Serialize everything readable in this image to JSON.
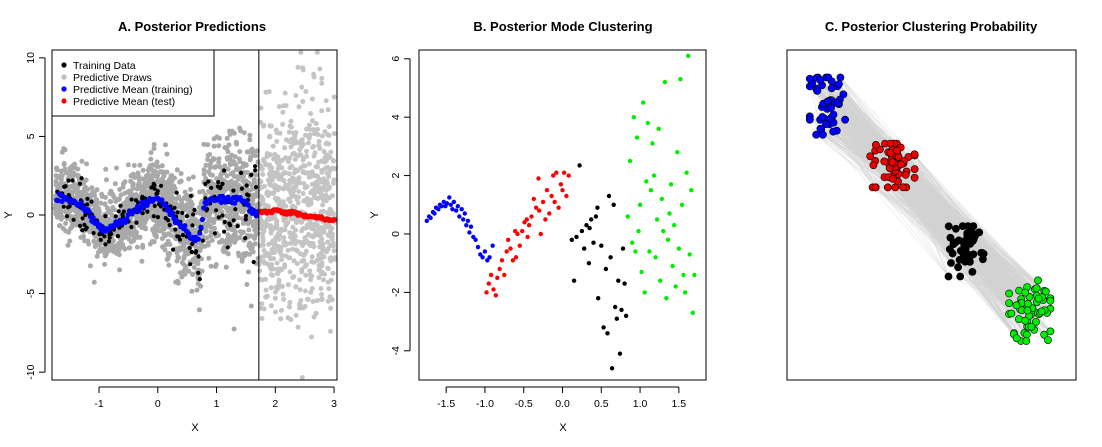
{
  "chart_data": [
    {
      "type": "scatter",
      "title": "A. Posterior Predictions",
      "xlabel": "X",
      "ylabel": "Y",
      "xlim": [
        -1.8,
        3.05
      ],
      "ylim": [
        -10.5,
        10.5
      ],
      "xticks": [
        "-1",
        "0",
        "1",
        "2",
        "3"
      ],
      "xtick_values": [
        -1,
        0,
        1,
        2,
        3
      ],
      "yticks": [
        "-10",
        "-5",
        "0",
        "5",
        "10"
      ],
      "ytick_values": [
        -10,
        -5,
        0,
        5,
        10
      ],
      "vline_x": 1.72,
      "legend_position": "top-left",
      "colors": {
        "training": "#000000",
        "draws": "#c4c4c4",
        "draws_dark": "#a9a9a9",
        "mean_train": "#0000ff",
        "mean_test": "#ff0000"
      },
      "legend": [
        {
          "label": "Training Data",
          "color": "#000000"
        },
        {
          "label": "Predictive Draws",
          "color": "#bebebe"
        },
        {
          "label": "Predictive Mean (training)",
          "color": "#0000ff"
        },
        {
          "label": "Predictive Mean (test)",
          "color": "#ff0000"
        }
      ],
      "series": [
        {
          "name": "Predictive Mean (training)",
          "x": [
            -1.7,
            -1.6,
            -1.5,
            -1.4,
            -1.3,
            -1.2,
            -1.1,
            -1.0,
            -0.9,
            -0.8,
            -0.7,
            -0.6,
            -0.5,
            -0.4,
            -0.3,
            -0.2,
            -0.1,
            0.0,
            0.1,
            0.2,
            0.3,
            0.4,
            0.5,
            0.6,
            0.7,
            0.8,
            0.9,
            1.0,
            1.1,
            1.2,
            1.3,
            1.4,
            1.5,
            1.6,
            1.7
          ],
          "y": [
            1.1,
            1.05,
            0.95,
            0.8,
            0.55,
            0.2,
            -0.3,
            -0.8,
            -1.0,
            -0.9,
            -0.6,
            -0.3,
            0.0,
            0.25,
            0.5,
            0.8,
            1.05,
            1.1,
            0.7,
            0.2,
            -0.3,
            -0.7,
            -1.1,
            -1.5,
            -1.7,
            0.8,
            1.1,
            1.1,
            1.0,
            0.95,
            0.9,
            1.0,
            0.8,
            0.3,
            0.2
          ]
        },
        {
          "name": "Predictive Mean (test)",
          "x": [
            1.75,
            1.9,
            2.05,
            2.2,
            2.35,
            2.5,
            2.65,
            2.8,
            2.95,
            3.0
          ],
          "y": [
            0.2,
            0.25,
            0.3,
            0.2,
            0.1,
            0.0,
            -0.1,
            -0.2,
            -0.3,
            -0.35
          ]
        }
      ]
    },
    {
      "type": "scatter",
      "title": "B. Posterior Mode Clustering",
      "xlabel": "X",
      "ylabel": "Y",
      "xlim": [
        -1.85,
        1.85
      ],
      "ylim": [
        -5.0,
        6.3
      ],
      "xticks": [
        "-1.5",
        "-1.0",
        "-0.5",
        "0.0",
        "0.5",
        "1.0",
        "1.5"
      ],
      "xtick_values": [
        -1.5,
        -1.0,
        -0.5,
        0.0,
        0.5,
        1.0,
        1.5
      ],
      "yticks": [
        "-4",
        "-2",
        "0",
        "2",
        "4",
        "6"
      ],
      "ytick_values": [
        -4,
        -2,
        0,
        2,
        4,
        6
      ],
      "series": [
        {
          "color": "#0000ff",
          "points": [
            [
              -1.75,
              0.45
            ],
            [
              -1.72,
              0.6
            ],
            [
              -1.7,
              0.55
            ],
            [
              -1.67,
              0.75
            ],
            [
              -1.65,
              0.7
            ],
            [
              -1.63,
              0.9
            ],
            [
              -1.6,
              0.85
            ],
            [
              -1.58,
              1.0
            ],
            [
              -1.56,
              0.95
            ],
            [
              -1.53,
              1.1
            ],
            [
              -1.51,
              0.95
            ],
            [
              -1.49,
              1.05
            ],
            [
              -1.46,
              1.25
            ],
            [
              -1.44,
              1.0
            ],
            [
              -1.42,
              0.85
            ],
            [
              -1.4,
              1.1
            ],
            [
              -1.37,
              0.8
            ],
            [
              -1.35,
              0.95
            ],
            [
              -1.33,
              0.6
            ],
            [
              -1.3,
              0.85
            ],
            [
              -1.28,
              0.5
            ],
            [
              -1.26,
              0.7
            ],
            [
              -1.24,
              0.3
            ],
            [
              -1.22,
              0.45
            ],
            [
              -1.2,
              0.05
            ],
            [
              -1.18,
              0.25
            ],
            [
              -1.15,
              -0.1
            ],
            [
              -1.12,
              -0.2
            ],
            [
              -1.09,
              -0.45
            ],
            [
              -1.06,
              -0.7
            ],
            [
              -1.03,
              -0.8
            ],
            [
              -1.0,
              -0.6
            ],
            [
              -0.97,
              -0.9
            ],
            [
              -0.94,
              -0.8
            ],
            [
              -0.9,
              -0.4
            ]
          ]
        },
        {
          "color": "#ff0000",
          "points": [
            [
              -0.98,
              -2.0
            ],
            [
              -0.95,
              -1.7
            ],
            [
              -0.92,
              -1.4
            ],
            [
              -0.89,
              -1.9
            ],
            [
              -0.86,
              -2.1
            ],
            [
              -0.84,
              -1.5
            ],
            [
              -0.81,
              -1.2
            ],
            [
              -0.78,
              -0.9
            ],
            [
              -0.75,
              -1.4
            ],
            [
              -0.72,
              -0.6
            ],
            [
              -0.7,
              -0.2
            ],
            [
              -0.67,
              -0.5
            ],
            [
              -0.64,
              -0.9
            ],
            [
              -0.61,
              0.1
            ],
            [
              -0.58,
              0.0
            ],
            [
              -0.55,
              -0.4
            ],
            [
              -0.52,
              0.1
            ],
            [
              -0.49,
              0.4
            ],
            [
              -0.46,
              0.5
            ],
            [
              -0.43,
              0.3
            ],
            [
              -0.4,
              0.6
            ],
            [
              -0.37,
              1.2
            ],
            [
              -0.34,
              0.9
            ],
            [
              -0.31,
              1.9
            ],
            [
              -0.28,
              0.0
            ],
            [
              -0.25,
              1.1
            ],
            [
              -0.22,
              0.5
            ],
            [
              -0.2,
              1.5
            ],
            [
              -0.17,
              0.7
            ],
            [
              -0.14,
              1.3
            ],
            [
              -0.12,
              2.0
            ],
            [
              -0.1,
              1.1
            ],
            [
              -0.08,
              2.1
            ],
            [
              -0.05,
              0.9
            ],
            [
              -0.02,
              1.7
            ],
            [
              0.0,
              1.5
            ],
            [
              0.02,
              2.1
            ],
            [
              0.05,
              1.3
            ],
            [
              0.08,
              2.0
            ],
            [
              -0.3,
              0.8
            ],
            [
              -0.45,
              -0.1
            ],
            [
              -0.6,
              -0.8
            ]
          ]
        },
        {
          "color": "#000000",
          "points": [
            [
              0.12,
              -0.2
            ],
            [
              0.15,
              -1.6
            ],
            [
              0.18,
              -0.1
            ],
            [
              0.22,
              2.35
            ],
            [
              0.25,
              0.1
            ],
            [
              0.28,
              -0.5
            ],
            [
              0.31,
              0.3
            ],
            [
              0.34,
              -1.0
            ],
            [
              0.37,
              0.5
            ],
            [
              0.4,
              -0.3
            ],
            [
              0.43,
              0.6
            ],
            [
              0.46,
              -2.2
            ],
            [
              0.5,
              -0.4
            ],
            [
              0.53,
              -3.2
            ],
            [
              0.56,
              -1.2
            ],
            [
              0.58,
              -3.4
            ],
            [
              0.6,
              1.3
            ],
            [
              0.62,
              -0.8
            ],
            [
              0.64,
              -4.6
            ],
            [
              0.66,
              1.0
            ],
            [
              0.68,
              -2.5
            ],
            [
              0.7,
              -2.9
            ],
            [
              0.72,
              -1.6
            ],
            [
              0.74,
              -4.1
            ],
            [
              0.76,
              -2.6
            ],
            [
              0.78,
              -0.5
            ],
            [
              0.8,
              -1.7
            ],
            [
              0.82,
              -2.8
            ],
            [
              0.35,
              0.2
            ],
            [
              0.45,
              0.9
            ]
          ]
        },
        {
          "color": "#00ee00",
          "points": [
            [
              0.84,
              0.6
            ],
            [
              0.87,
              2.5
            ],
            [
              0.9,
              -0.3
            ],
            [
              0.92,
              4.0
            ],
            [
              0.94,
              -0.6
            ],
            [
              0.96,
              3.3
            ],
            [
              0.98,
              0.1
            ],
            [
              1.0,
              1.0
            ],
            [
              1.02,
              -1.3
            ],
            [
              1.04,
              4.5
            ],
            [
              1.06,
              -2.0
            ],
            [
              1.08,
              1.8
            ],
            [
              1.1,
              3.8
            ],
            [
              1.12,
              -0.6
            ],
            [
              1.14,
              1.5
            ],
            [
              1.16,
              3.1
            ],
            [
              1.18,
              2.0
            ],
            [
              1.2,
              -0.8
            ],
            [
              1.22,
              0.5
            ],
            [
              1.24,
              3.6
            ],
            [
              1.26,
              -1.6
            ],
            [
              1.28,
              1.2
            ],
            [
              1.3,
              0.1
            ],
            [
              1.32,
              5.2
            ],
            [
              1.34,
              -2.2
            ],
            [
              1.36,
              -0.2
            ],
            [
              1.38,
              0.7
            ],
            [
              1.4,
              1.7
            ],
            [
              1.42,
              -1.1
            ],
            [
              1.44,
              0.3
            ],
            [
              1.46,
              -1.8
            ],
            [
              1.48,
              2.8
            ],
            [
              1.5,
              -0.5
            ],
            [
              1.52,
              5.3
            ],
            [
              1.54,
              1.0
            ],
            [
              1.56,
              -1.4
            ],
            [
              1.58,
              -2.0
            ],
            [
              1.6,
              2.1
            ],
            [
              1.62,
              6.1
            ],
            [
              1.64,
              -0.7
            ],
            [
              1.66,
              1.5
            ],
            [
              1.68,
              -2.7
            ],
            [
              1.7,
              -1.4
            ]
          ]
        }
      ]
    },
    {
      "type": "scatter",
      "title": "C. Posterior Clustering Probability",
      "xlim": [
        0,
        1
      ],
      "ylim": [
        0,
        1
      ],
      "band_color": "#d3d3d3",
      "series": [
        {
          "color": "#0000ff",
          "center": [
            0.14,
            0.83
          ],
          "spread": [
            0.06,
            0.085
          ],
          "count": 48
        },
        {
          "color": "#ee0000",
          "center": [
            0.36,
            0.65
          ],
          "spread": [
            0.08,
            0.065
          ],
          "count": 60
        },
        {
          "color": "#000000",
          "center": [
            0.62,
            0.39
          ],
          "spread": [
            0.06,
            0.075
          ],
          "count": 48
        },
        {
          "color": "#00ee00",
          "center": [
            0.84,
            0.21
          ],
          "spread": [
            0.07,
            0.09
          ],
          "count": 58
        }
      ]
    }
  ]
}
